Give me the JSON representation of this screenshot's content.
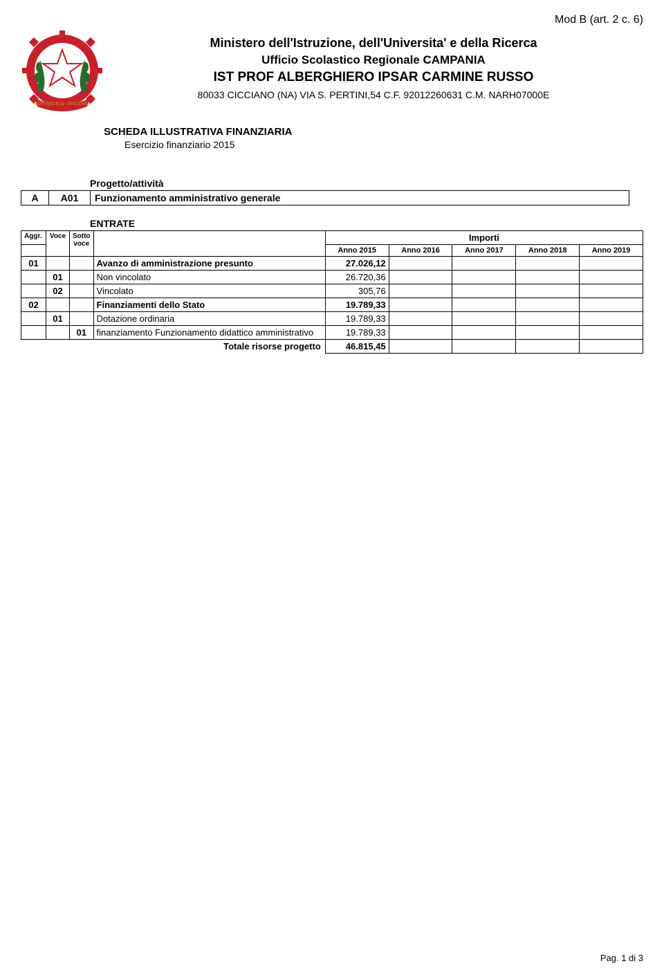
{
  "mod_header": "Mod B (art. 2 c. 6)",
  "header": {
    "line1": "Ministero dell'Istruzione, dell'Universita' e della Ricerca",
    "line2": "Ufficio Scolastico Regionale CAMPANIA",
    "line3": "IST PROF  ALBERGHIERO IPSAR  CARMINE RUSSO",
    "line4": "80033 CICCIANO (NA) VIA S. PERTINI,54 C.F. 92012260631 C.M. NARH07000E"
  },
  "scheda": {
    "title": "SCHEDA ILLUSTRATIVA FINANZIARIA",
    "sub": "Esercizio finanziario 2015"
  },
  "progetto": {
    "label": "Progetto/attività",
    "colA": "A",
    "colB": "A01",
    "desc": "Funzionamento amministrativo generale"
  },
  "entrate": {
    "label": "ENTRATE",
    "headers": {
      "aggr": "Aggr.",
      "voce": "Voce",
      "sotto": "Sotto voce",
      "importi": "Importi",
      "anno2015": "Anno 2015",
      "anno2016": "Anno 2016",
      "anno2017": "Anno 2017",
      "anno2018": "Anno 2018",
      "anno2019": "Anno 2019"
    },
    "rows": [
      {
        "aggr": "01",
        "voce": "",
        "sotto": "",
        "desc": "Avanzo di amministrazione presunto",
        "bold": true,
        "a2015": "27.026,12"
      },
      {
        "aggr": "",
        "voce": "01",
        "sotto": "",
        "desc": "Non vincolato",
        "bold": false,
        "a2015": "26.720,36"
      },
      {
        "aggr": "",
        "voce": "02",
        "sotto": "",
        "desc": "Vincolato",
        "bold": false,
        "a2015": "305,76"
      },
      {
        "aggr": "02",
        "voce": "",
        "sotto": "",
        "desc": "Finanziamenti dello Stato",
        "bold": true,
        "a2015": "19.789,33"
      },
      {
        "aggr": "",
        "voce": "01",
        "sotto": "",
        "desc": "Dotazione ordinaria",
        "bold": false,
        "a2015": "19.789,33"
      },
      {
        "aggr": "",
        "voce": "",
        "sotto": "01",
        "desc": "finanziamento Funzionamento didattico amministrativo",
        "bold": false,
        "a2015": "19.789,33"
      }
    ],
    "total": {
      "label": "Totale risorse progetto",
      "a2015": "46.815,45"
    }
  },
  "footer": "Pag. 1 di 3",
  "emblem": {
    "colors": {
      "red": "#c8202a",
      "green": "#2a6a2e",
      "gold": "#c9a038",
      "white": "#ffffff",
      "blue": "#22458a",
      "dark": "#7a1116"
    }
  }
}
